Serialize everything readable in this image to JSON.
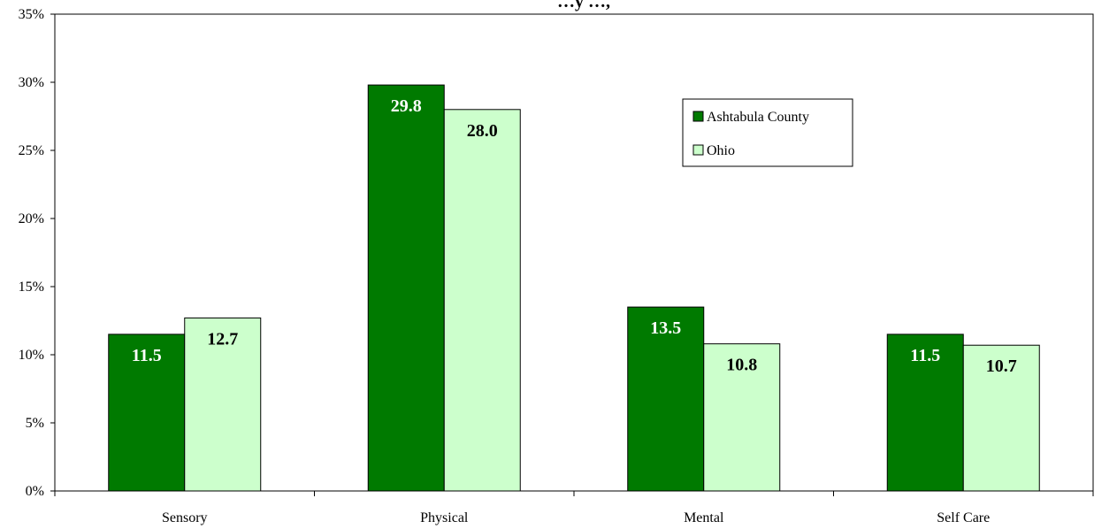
{
  "chart_data": {
    "type": "bar",
    "title": "…y …,",
    "categories": [
      "Sensory",
      "Physical",
      "Mental",
      "Self Care"
    ],
    "series": [
      {
        "name": "Ashtabula County",
        "values": [
          11.5,
          29.8,
          13.5,
          11.5
        ],
        "color": "#007a00",
        "label_color": "#ffffff"
      },
      {
        "name": "Ohio",
        "values": [
          12.7,
          28.0,
          10.8,
          10.7
        ],
        "color": "#ccffcc",
        "label_color": "#000000"
      }
    ],
    "data_labels": [
      [
        "11.5",
        "29.8",
        "13.5",
        "11.5"
      ],
      [
        "12.7",
        "28.0",
        "10.8",
        "10.7"
      ]
    ],
    "ylim": [
      0,
      35
    ],
    "y_ticks": [
      "0%",
      "5%",
      "10%",
      "15%",
      "20%",
      "25%",
      "30%",
      "35%"
    ],
    "y_tick_values": [
      0,
      5,
      10,
      15,
      20,
      25,
      30,
      35
    ],
    "xlabel": "",
    "ylabel": "",
    "grid": false,
    "legend": {
      "position": "upper-center",
      "entries": [
        "Ashtabula County",
        "Ohio"
      ]
    }
  }
}
